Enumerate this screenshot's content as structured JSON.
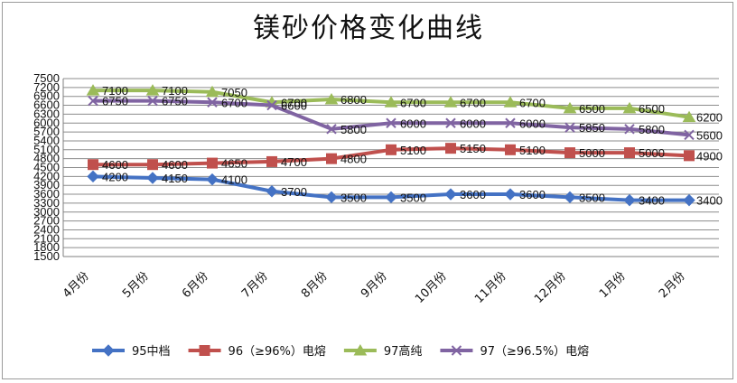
{
  "chart_data": {
    "type": "line",
    "title": "镁砂价格变化曲线",
    "categories": [
      "4月份",
      "5月份",
      "6月份",
      "7月份",
      "8月份",
      "9月份",
      "10月份",
      "11月份",
      "12月份",
      "1月份",
      "2月份"
    ],
    "y_ticks": [
      1500,
      1800,
      2100,
      2400,
      2700,
      3000,
      3300,
      3600,
      3900,
      4200,
      4500,
      4800,
      5100,
      5400,
      5700,
      6000,
      6300,
      6600,
      6900,
      7200,
      7500
    ],
    "ylim": [
      1500,
      7500
    ],
    "grid": true,
    "legend_position": "bottom",
    "series": [
      {
        "name": "95中档",
        "color": "#4472C4",
        "marker": "diamond",
        "values": [
          4200,
          4150,
          4100,
          3700,
          3500,
          3500,
          3600,
          3600,
          3500,
          3400,
          3400
        ],
        "labels": [
          "4200",
          "4150",
          "4100",
          "3700",
          "3500",
          "3500",
          "3600",
          "3600",
          "3500",
          "3400",
          "3400"
        ]
      },
      {
        "name": "96（≥96%）电熔",
        "color": "#C0504D",
        "marker": "square",
        "values": [
          4600,
          4600,
          4650,
          4700,
          4800,
          5100,
          5150,
          5100,
          5000,
          5000,
          4900
        ],
        "labels": [
          "4600",
          "4600",
          "4650",
          "4700",
          "4800",
          "5100",
          "5150",
          "5100",
          "5000",
          "5000",
          "4900"
        ]
      },
      {
        "name": "97高纯",
        "color": "#9BBB59",
        "marker": "triangle",
        "values": [
          7100,
          7100,
          7050,
          6700,
          6800,
          6700,
          6700,
          6700,
          6500,
          6500,
          6200
        ],
        "labels": [
          "7100",
          "7100",
          "7050",
          "6700",
          "6800",
          "6700",
          "6700",
          "6700",
          "6500",
          "6500",
          "6200"
        ]
      },
      {
        "name": "97（≥96.5%）电熔",
        "color": "#8064A2",
        "marker": "x",
        "values": [
          6750,
          6750,
          6700,
          6600,
          5800,
          6000,
          6000,
          6000,
          5850,
          5800,
          5600
        ],
        "labels": [
          "6750",
          "6750",
          "6700",
          "6600",
          "5800",
          "6000",
          "6000",
          "6000",
          "5850",
          "5800",
          "5600"
        ]
      }
    ]
  }
}
